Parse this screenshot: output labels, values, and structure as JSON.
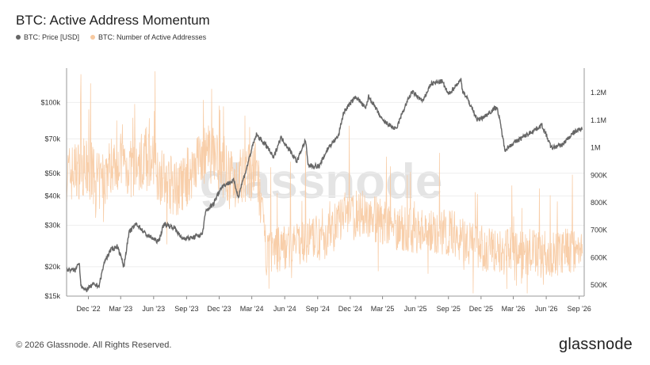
{
  "title": "BTC: Active Address Momentum",
  "legend": [
    {
      "label": "BTC: Price [USD]",
      "color": "#666666"
    },
    {
      "label": "BTC: Number of Active Addresses",
      "color": "#f7c9a0"
    }
  ],
  "watermark": "glassnode",
  "footer": {
    "copyright": "© 2026 Glassnode. All Rights Reserved.",
    "logo": "glassnode"
  },
  "chart_data": {
    "type": "line",
    "x_ticks": [
      "Dec '22",
      "Mar '23",
      "Jun '23",
      "Sep '23",
      "Dec '23",
      "Mar '24",
      "Jun '24",
      "Sep '24",
      "Dec '24",
      "Mar '25",
      "Jun '25",
      "Sep '25",
      "Dec '25",
      "Mar '26",
      "Jun '26",
      "Sep '26"
    ],
    "y_left": {
      "scale": "log",
      "ticks": [
        "$15k",
        "$20k",
        "$30k",
        "$40k",
        "$50k",
        "$70k",
        "$100k"
      ],
      "tick_values": [
        15000,
        20000,
        30000,
        40000,
        50000,
        70000,
        100000
      ],
      "range": [
        15000,
        140000
      ]
    },
    "y_right": {
      "scale": "linear",
      "ticks": [
        "500K",
        "600K",
        "700K",
        "800K",
        "900K",
        "1M",
        "1.1M",
        "1.2M"
      ],
      "tick_values": [
        500000,
        600000,
        700000,
        800000,
        900000,
        1000000,
        1100000,
        1200000
      ],
      "range": [
        460000,
        1290000
      ]
    },
    "x_range": [
      "2022-10-01",
      "2026-09-15"
    ],
    "grid": true,
    "series": [
      {
        "name": "BTC: Price [USD]",
        "axis": "left",
        "color": "#666666",
        "points": [
          [
            "2022-10-01",
            19500
          ],
          [
            "2022-10-25",
            19300
          ],
          [
            "2022-11-05",
            21000
          ],
          [
            "2022-11-10",
            16800
          ],
          [
            "2022-11-21",
            15800
          ],
          [
            "2022-12-15",
            16800
          ],
          [
            "2022-12-31",
            16600
          ],
          [
            "2023-01-15",
            21000
          ],
          [
            "2023-02-01",
            23500
          ],
          [
            "2023-02-20",
            24500
          ],
          [
            "2023-03-10",
            20000
          ],
          [
            "2023-03-25",
            28000
          ],
          [
            "2023-04-14",
            30500
          ],
          [
            "2023-05-10",
            27500
          ],
          [
            "2023-06-15",
            25500
          ],
          [
            "2023-06-30",
            30500
          ],
          [
            "2023-07-31",
            29200
          ],
          [
            "2023-08-17",
            26500
          ],
          [
            "2023-09-15",
            26500
          ],
          [
            "2023-10-15",
            27500
          ],
          [
            "2023-10-25",
            34500
          ],
          [
            "2023-11-15",
            37000
          ],
          [
            "2023-12-08",
            44000
          ],
          [
            "2024-01-11",
            46500
          ],
          [
            "2024-01-23",
            39500
          ],
          [
            "2024-02-15",
            52000
          ],
          [
            "2024-03-14",
            73000
          ],
          [
            "2024-04-15",
            64000
          ],
          [
            "2024-05-01",
            58000
          ],
          [
            "2024-05-21",
            71000
          ],
          [
            "2024-07-05",
            56000
          ],
          [
            "2024-07-29",
            69000
          ],
          [
            "2024-08-05",
            54000
          ],
          [
            "2024-09-06",
            53500
          ],
          [
            "2024-09-30",
            64000
          ],
          [
            "2024-10-29",
            72000
          ],
          [
            "2024-11-13",
            91000
          ],
          [
            "2024-12-17",
            106000
          ],
          [
            "2025-01-13",
            94000
          ],
          [
            "2025-01-21",
            106000
          ],
          [
            "2025-02-28",
            84000
          ],
          [
            "2025-04-08",
            76500
          ],
          [
            "2025-05-22",
            111000
          ],
          [
            "2025-06-22",
            101000
          ],
          [
            "2025-07-14",
            120000
          ],
          [
            "2025-08-14",
            123000
          ],
          [
            "2025-09-01",
            108000
          ],
          [
            "2025-10-06",
            125000
          ],
          [
            "2025-10-10",
            113000
          ],
          [
            "2025-11-21",
            84000
          ],
          [
            "2025-12-15",
            88000
          ],
          [
            "2026-01-14",
            96000
          ],
          [
            "2026-02-05",
            63000
          ],
          [
            "2026-03-01",
            67000
          ],
          [
            "2026-04-15",
            74000
          ],
          [
            "2026-05-20",
            80000
          ],
          [
            "2026-06-15",
            64000
          ],
          [
            "2026-07-15",
            66000
          ],
          [
            "2026-08-20",
            75000
          ],
          [
            "2026-09-10",
            78000
          ]
        ]
      },
      {
        "name": "BTC: Number of Active Addresses",
        "axis": "right",
        "color": "#f7c9a0",
        "points": [
          [
            "2022-10-01",
            900000
          ],
          [
            "2022-11-15",
            930000
          ],
          [
            "2023-01-01",
            870000
          ],
          [
            "2023-02-15",
            960000
          ],
          [
            "2023-04-01",
            920000
          ],
          [
            "2023-05-15",
            970000
          ],
          [
            "2023-07-01",
            880000
          ],
          [
            "2023-08-15",
            850000
          ],
          [
            "2023-10-01",
            960000
          ],
          [
            "2023-11-15",
            980000
          ],
          [
            "2024-01-01",
            880000
          ],
          [
            "2024-02-15",
            900000
          ],
          [
            "2024-03-15",
            920000
          ],
          [
            "2024-04-10",
            620000
          ],
          [
            "2024-06-01",
            640000
          ],
          [
            "2024-08-01",
            660000
          ],
          [
            "2024-10-01",
            680000
          ],
          [
            "2024-11-15",
            760000
          ],
          [
            "2025-01-15",
            760000
          ],
          [
            "2025-03-15",
            720000
          ],
          [
            "2025-05-15",
            700000
          ],
          [
            "2025-07-15",
            700000
          ],
          [
            "2025-09-15",
            690000
          ],
          [
            "2025-11-15",
            640000
          ],
          [
            "2026-01-15",
            620000
          ],
          [
            "2026-03-15",
            630000
          ],
          [
            "2026-05-15",
            610000
          ],
          [
            "2026-07-15",
            620000
          ],
          [
            "2026-09-10",
            640000
          ]
        ]
      }
    ]
  }
}
